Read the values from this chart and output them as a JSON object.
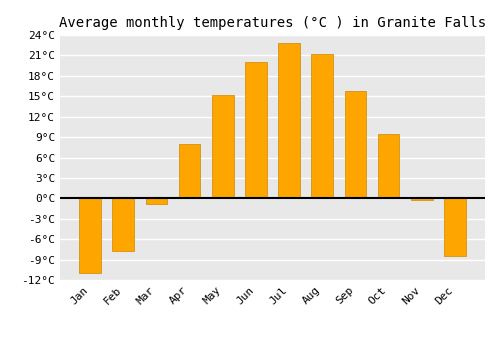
{
  "months": [
    "Jan",
    "Feb",
    "Mar",
    "Apr",
    "May",
    "Jun",
    "Jul",
    "Aug",
    "Sep",
    "Oct",
    "Nov",
    "Dec"
  ],
  "values": [
    -11.0,
    -7.8,
    -0.8,
    8.0,
    15.2,
    20.0,
    22.8,
    21.2,
    15.8,
    9.5,
    -0.2,
    -8.5
  ],
  "bar_color": "#FFA500",
  "bar_edge_color": "#CC8800",
  "title": "Average monthly temperatures (°C ) in Granite Falls",
  "ylim": [
    -12,
    24
  ],
  "yticks": [
    -12,
    -9,
    -6,
    -3,
    0,
    3,
    6,
    9,
    12,
    15,
    18,
    21,
    24
  ],
  "figure_bg": "#ffffff",
  "axes_bg": "#e8e8e8",
  "grid_color": "#ffffff",
  "zero_line_color": "#000000",
  "title_fontsize": 10,
  "tick_fontsize": 8
}
